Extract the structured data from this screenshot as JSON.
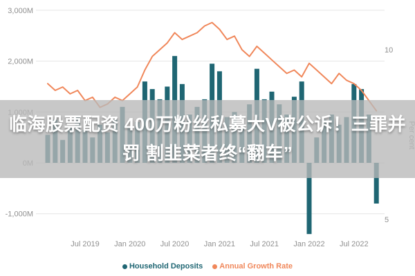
{
  "overlay": {
    "line1": "临海股票配资 400万粉丝私募大V被公诉！三罪并",
    "line2": "罚 割韭菜者终“翻车”"
  },
  "colors": {
    "bar": "#1f6673",
    "line": "#f0875a",
    "axis_text": "#8f8f8f",
    "grid": "#e5e5e5",
    "overlay_bg": "rgba(184,184,184,0.78)",
    "headline_text": "#ffffff"
  },
  "chart_data": {
    "type": "bar",
    "title": "",
    "months": [
      "2019-02",
      "2019-03",
      "2019-04",
      "2019-05",
      "2019-06",
      "2019-07",
      "2019-08",
      "2019-09",
      "2019-10",
      "2019-11",
      "2019-12",
      "2020-01",
      "2020-02",
      "2020-03",
      "2020-04",
      "2020-05",
      "2020-06",
      "2020-07",
      "2020-08",
      "2020-09",
      "2020-10",
      "2020-11",
      "2020-12",
      "2021-01",
      "2021-02",
      "2021-03",
      "2021-04",
      "2021-05",
      "2021-06",
      "2021-07",
      "2021-08",
      "2021-09",
      "2021-10",
      "2021-11",
      "2021-12",
      "2022-01",
      "2022-02",
      "2022-03",
      "2022-04",
      "2022-05",
      "2022-06",
      "2022-07",
      "2022-08",
      "2022-09",
      "2022-10"
    ],
    "series": [
      {
        "name": "Household Deposits",
        "type": "bar",
        "axis": "left",
        "unit": "M",
        "values": [
          550,
          850,
          450,
          700,
          900,
          650,
          500,
          750,
          600,
          850,
          1100,
          700,
          800,
          1600,
          1450,
          1250,
          1500,
          2100,
          1550,
          950,
          1100,
          1250,
          1950,
          1800,
          900,
          1000,
          700,
          1150,
          1850,
          1250,
          1400,
          1150,
          950,
          1300,
          1600,
          -1400,
          500,
          850,
          950,
          750,
          900,
          1550,
          1450,
          950,
          -800
        ]
      },
      {
        "name": "Annual Growth Rate",
        "type": "line",
        "axis": "right",
        "unit": "percent",
        "values": [
          9.0,
          8.8,
          8.9,
          8.7,
          8.8,
          8.5,
          8.6,
          8.3,
          8.4,
          8.6,
          8.5,
          8.7,
          8.9,
          9.4,
          9.8,
          10.0,
          10.2,
          10.5,
          10.3,
          10.4,
          10.5,
          10.7,
          10.8,
          10.6,
          10.3,
          10.4,
          10.0,
          9.8,
          10.1,
          9.9,
          9.7,
          9.5,
          9.3,
          9.4,
          9.2,
          9.6,
          9.4,
          9.2,
          9.0,
          9.3,
          9.1,
          9.0,
          8.8,
          8.5,
          8.2
        ]
      }
    ],
    "left_axis": {
      "range": [
        -1500,
        3100
      ],
      "ticks": [
        {
          "label": "3,000M",
          "value": 3000
        },
        {
          "label": "2,000M",
          "value": 2000
        },
        {
          "label": "1,000M",
          "value": 1000
        },
        {
          "label": "0M",
          "value": 0
        },
        {
          "label": "-1,000M",
          "value": -1000
        }
      ]
    },
    "right_axis": {
      "title": "Per cent",
      "range": [
        4,
        11
      ],
      "ticks": [
        {
          "label": "10",
          "value": 10
        },
        {
          "label": "5",
          "value": 5
        }
      ]
    },
    "x_axis": {
      "ticks": [
        {
          "label": "Jul 2019",
          "month": "2019-07"
        },
        {
          "label": "Jan 2020",
          "month": "2020-01"
        },
        {
          "label": "Jul 2020",
          "month": "2020-07"
        },
        {
          "label": "Jan 2021",
          "month": "2021-01"
        },
        {
          "label": "Jul 2021",
          "month": "2021-07"
        },
        {
          "label": "Jan 2022",
          "month": "2022-01"
        },
        {
          "label": "Jul 2022",
          "month": "2022-07"
        }
      ]
    },
    "legend_position": "bottom",
    "grid": true
  }
}
